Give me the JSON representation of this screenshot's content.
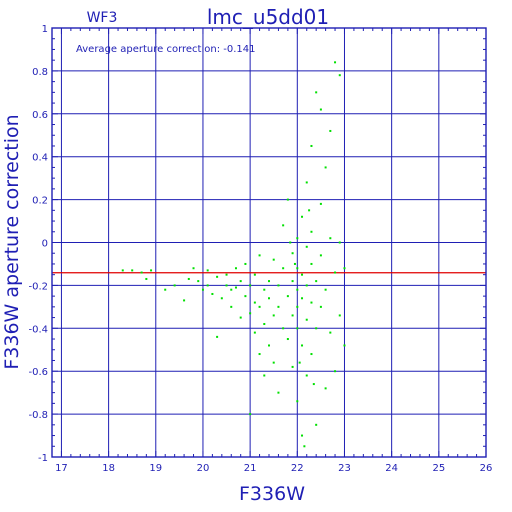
{
  "chart_data": {
    "type": "scatter",
    "title": "lmc_u5dd01",
    "chip_label": "WF3",
    "annotation": "Average aperture correction: -0.141",
    "xlabel": "F336W",
    "ylabel": "F336W aperture correction",
    "xlim": [
      16.8,
      26.0
    ],
    "ylim": [
      -1.0,
      1.0
    ],
    "x_ticks": [
      "17",
      "18",
      "19",
      "20",
      "21",
      "22",
      "23",
      "24",
      "25",
      "26"
    ],
    "y_ticks": [
      "-1",
      "-0.8",
      "-0.6",
      "-0.4",
      "-0.2",
      "0",
      "0.2",
      "0.4",
      "0.6",
      "0.8",
      "1"
    ],
    "grid": true,
    "average_line": -0.141,
    "colors": {
      "axes": "#1f1fb4",
      "points": "#00e000",
      "average_line": "#e00000"
    },
    "series": [
      {
        "points": [
          [
            18.3,
            -0.13
          ],
          [
            18.5,
            -0.13
          ],
          [
            18.7,
            -0.14
          ],
          [
            18.9,
            -0.13
          ],
          [
            18.8,
            -0.17
          ],
          [
            19.2,
            -0.22
          ],
          [
            19.4,
            -0.2
          ],
          [
            19.6,
            -0.27
          ],
          [
            19.7,
            -0.17
          ],
          [
            19.8,
            -0.12
          ],
          [
            19.9,
            -0.18
          ],
          [
            20.0,
            -0.22
          ],
          [
            20.1,
            -0.2
          ],
          [
            20.1,
            -0.13
          ],
          [
            20.2,
            -0.24
          ],
          [
            20.3,
            -0.44
          ],
          [
            20.3,
            -0.16
          ],
          [
            20.4,
            -0.26
          ],
          [
            20.5,
            -0.2
          ],
          [
            20.5,
            -0.15
          ],
          [
            20.6,
            -0.22
          ],
          [
            20.6,
            -0.3
          ],
          [
            20.7,
            -0.21
          ],
          [
            20.7,
            -0.12
          ],
          [
            20.8,
            -0.18
          ],
          [
            20.8,
            -0.35
          ],
          [
            20.9,
            -0.25
          ],
          [
            20.9,
            -0.1
          ],
          [
            21.0,
            -0.2
          ],
          [
            21.0,
            -0.33
          ],
          [
            21.0,
            -0.8
          ],
          [
            21.1,
            -0.28
          ],
          [
            21.1,
            -0.15
          ],
          [
            21.1,
            -0.42
          ],
          [
            21.2,
            -0.3
          ],
          [
            21.2,
            -0.52
          ],
          [
            21.2,
            -0.06
          ],
          [
            21.3,
            -0.22
          ],
          [
            21.3,
            -0.38
          ],
          [
            21.3,
            -0.62
          ],
          [
            21.4,
            -0.26
          ],
          [
            21.4,
            -0.18
          ],
          [
            21.4,
            -0.48
          ],
          [
            21.5,
            -0.34
          ],
          [
            21.5,
            -0.08
          ],
          [
            21.5,
            -0.56
          ],
          [
            21.6,
            -0.3
          ],
          [
            21.6,
            -0.2
          ],
          [
            21.6,
            -0.7
          ],
          [
            21.7,
            -0.12
          ],
          [
            21.7,
            -0.4
          ],
          [
            21.7,
            0.08
          ],
          [
            21.8,
            -0.25
          ],
          [
            21.8,
            -0.45
          ],
          [
            21.8,
            0.2
          ],
          [
            21.9,
            -0.18
          ],
          [
            21.9,
            -0.34
          ],
          [
            21.9,
            -0.05
          ],
          [
            21.9,
            -0.58
          ],
          [
            22.0,
            -0.22
          ],
          [
            22.0,
            -0.3
          ],
          [
            22.0,
            -0.4
          ],
          [
            22.0,
            0.02
          ],
          [
            22.0,
            -0.12
          ],
          [
            22.0,
            -0.74
          ],
          [
            22.1,
            -0.26
          ],
          [
            22.1,
            -0.48
          ],
          [
            22.1,
            -0.15
          ],
          [
            22.1,
            0.12
          ],
          [
            22.1,
            -0.9
          ],
          [
            22.2,
            -0.2
          ],
          [
            22.2,
            -0.36
          ],
          [
            22.2,
            -0.02
          ],
          [
            22.2,
            -0.62
          ],
          [
            22.2,
            0.28
          ],
          [
            22.3,
            -0.1
          ],
          [
            22.3,
            -0.28
          ],
          [
            22.3,
            0.05
          ],
          [
            22.3,
            -0.52
          ],
          [
            22.3,
            0.45
          ],
          [
            22.4,
            -0.18
          ],
          [
            22.4,
            -0.4
          ],
          [
            22.4,
            0.7
          ],
          [
            22.4,
            -0.85
          ],
          [
            22.5,
            -0.06
          ],
          [
            22.5,
            -0.3
          ],
          [
            22.5,
            0.18
          ],
          [
            22.5,
            0.62
          ],
          [
            22.6,
            -0.22
          ],
          [
            22.6,
            0.35
          ],
          [
            22.6,
            -0.68
          ],
          [
            22.7,
            0.02
          ],
          [
            22.7,
            -0.42
          ],
          [
            22.7,
            0.52
          ],
          [
            22.8,
            -0.14
          ],
          [
            22.8,
            0.84
          ],
          [
            22.8,
            -0.6
          ],
          [
            22.9,
            0.0
          ],
          [
            22.9,
            0.78
          ],
          [
            22.9,
            -0.34
          ],
          [
            23.0,
            -0.12
          ],
          [
            23.0,
            -0.48
          ],
          [
            22.15,
            -0.95
          ],
          [
            22.05,
            -0.56
          ],
          [
            21.95,
            -0.1
          ],
          [
            21.85,
            0.0
          ],
          [
            22.25,
            0.15
          ],
          [
            22.35,
            -0.66
          ]
        ]
      }
    ]
  }
}
